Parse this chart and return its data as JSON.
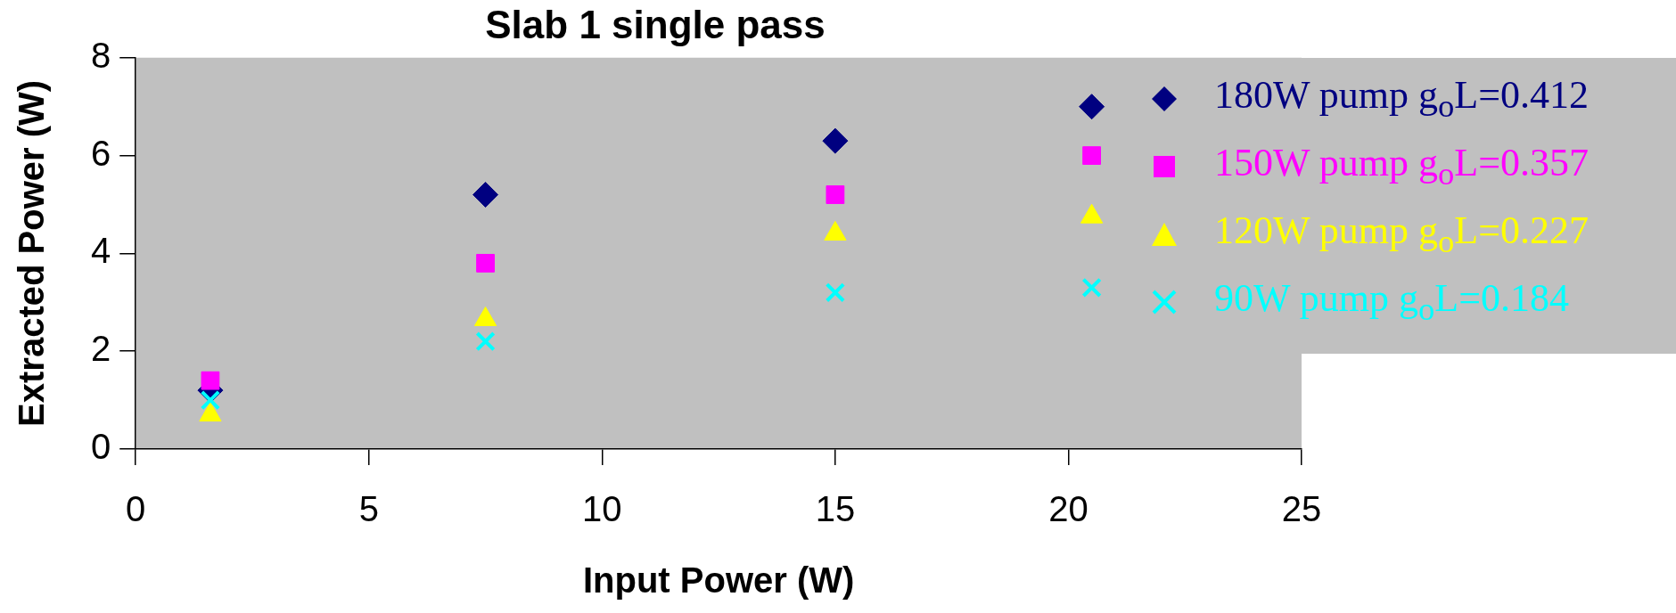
{
  "chart_data": {
    "type": "scatter",
    "title": "Slab 1 single pass",
    "xlabel": "Input Power (W)",
    "ylabel": "Extracted Power (W)",
    "x": [
      1.6,
      7.5,
      15,
      20.5
    ],
    "series": [
      {
        "name": "180W pump g$_{o}$L=0.412",
        "color": "#000080",
        "marker": "diamond",
        "values": [
          1.2,
          5.2,
          6.3,
          7.0
        ]
      },
      {
        "name": "150W pump g$_{o}$L=0.357",
        "color": "#ff00ff",
        "marker": "square",
        "values": [
          1.4,
          3.8,
          5.2,
          6.0
        ]
      },
      {
        "name": "120W pump g$_{o}$L=0.227",
        "color": "#ffff00",
        "marker": "triangle",
        "values": [
          0.7,
          2.65,
          4.4,
          4.75
        ]
      },
      {
        "name": "90W pump g$_{o}$L=0.184",
        "color": "#00ffff",
        "marker": "cross",
        "values": [
          1.0,
          2.2,
          3.2,
          3.3
        ]
      }
    ],
    "xlim": [
      0,
      25
    ],
    "xticks": [
      0,
      5,
      10,
      15,
      20,
      25
    ],
    "ylim": [
      0,
      8
    ],
    "yticks": [
      0,
      2,
      4,
      6,
      8
    ],
    "grid": false,
    "legend": "top right"
  }
}
